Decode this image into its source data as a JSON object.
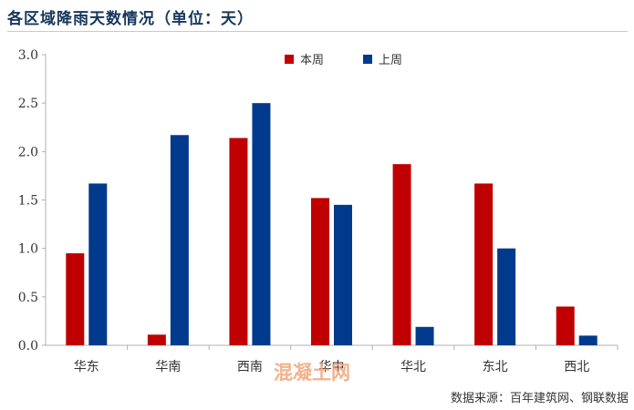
{
  "title": "各区域降雨天数情况（单位：天）",
  "source": "数据来源：百年建筑网、钢联数据",
  "watermark": "混凝土网",
  "colors": {
    "series_current": "#c00000",
    "series_previous": "#003a8c"
  },
  "chart_data": {
    "type": "bar",
    "categories": [
      "华东",
      "华南",
      "西南",
      "华中",
      "华北",
      "东北",
      "西北"
    ],
    "series": [
      {
        "name": "本周",
        "values": [
          0.95,
          0.11,
          2.14,
          1.52,
          1.87,
          1.67,
          0.4
        ]
      },
      {
        "name": "上周",
        "values": [
          1.67,
          2.17,
          2.5,
          1.45,
          0.19,
          1.0,
          0.1
        ]
      }
    ],
    "ylim": [
      0,
      3.0
    ],
    "yticks": [
      "0.0",
      "0.5",
      "1.0",
      "1.5",
      "2.0",
      "2.5",
      "3.0"
    ],
    "grid": false,
    "legend": "top-center"
  }
}
